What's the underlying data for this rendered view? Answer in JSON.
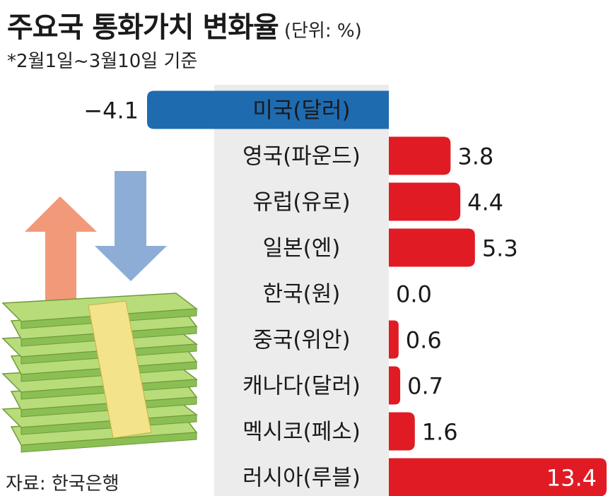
{
  "header": {
    "title": "주요국 통화가치 변화율",
    "unit": "(단위: %)",
    "subtitle": "*2월1일~3월10일 기준"
  },
  "footer": {
    "source": "자료: 한국은행"
  },
  "colors": {
    "negative": "#1f6bb0",
    "positive": "#e01b24",
    "label_band": "#ececec"
  },
  "illustration": {
    "icons": [
      "up-arrow-icon",
      "down-arrow-icon",
      "money-stack-icon"
    ],
    "up_arrow_color": "#f2997a",
    "down_arrow_color": "#8eadd6",
    "money_color": "#b8dc7a"
  },
  "chart_data": {
    "type": "bar",
    "orientation": "horizontal",
    "categories": [
      "미국(달러)",
      "영국(파운드)",
      "유럽(유로)",
      "일본(엔)",
      "한국(원)",
      "중국(위안)",
      "캐나다(달러)",
      "멕시코(페소)",
      "러시아(루블)"
    ],
    "values": [
      -4.1,
      3.8,
      4.4,
      5.3,
      0.0,
      0.6,
      0.7,
      1.6,
      13.4
    ],
    "value_labels": [
      "−4.1",
      "3.8",
      "4.4",
      "5.3",
      "0.0",
      "0.6",
      "0.7",
      "1.6",
      "13.4"
    ],
    "title": "주요국 통화가치 변화율",
    "xlabel": "",
    "ylabel": "",
    "grid": false,
    "legend": "none"
  }
}
